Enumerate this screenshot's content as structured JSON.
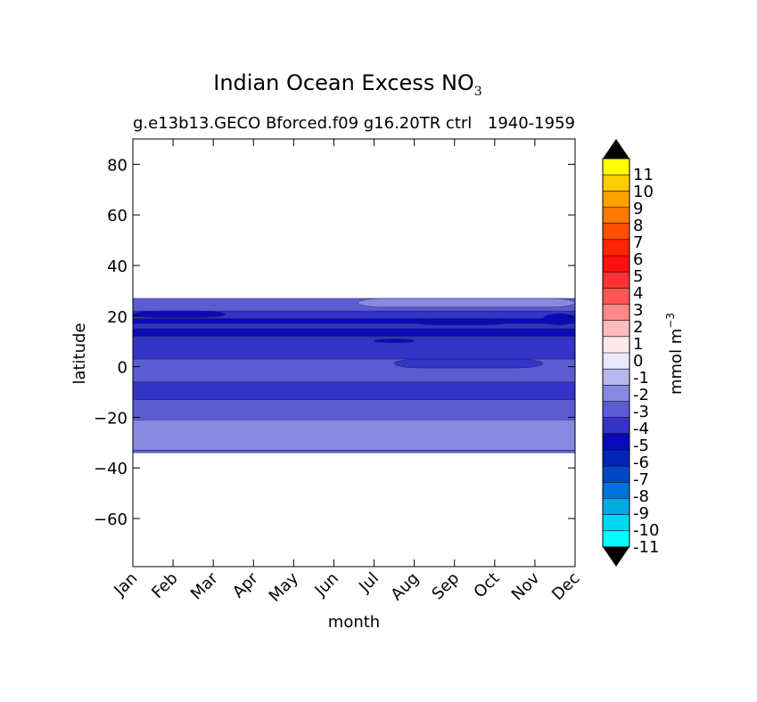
{
  "chart_data": {
    "type": "heatmap",
    "title": "Indian Ocean Excess NO",
    "title_subscript": "3",
    "subtitle_left": "g.e13b13.GECO Bforced.f09 g16.20TR ctrl",
    "subtitle_right": "1940-1959",
    "xlabel": "month",
    "ylabel": "latitude",
    "x_ticks": [
      "Jan",
      "Feb",
      "Mar",
      "Apr",
      "May",
      "Jun",
      "Jul",
      "Aug",
      "Sep",
      "Oct",
      "Nov",
      "Dec"
    ],
    "y_ticks": [
      80,
      60,
      40,
      20,
      0,
      -20,
      -40,
      -60
    ],
    "y_tick_labels": [
      "80",
      "60",
      "40",
      "20",
      "0",
      "−20",
      "−40",
      "−60"
    ],
    "ylim": [
      -79,
      90
    ],
    "grid": false,
    "colorbar": {
      "label": "mmol m",
      "label_superscript": "−3",
      "levels": [
        -11,
        -10,
        -9,
        -8,
        -7,
        -6,
        -5,
        -4,
        -3,
        -2,
        -1,
        0,
        1,
        2,
        3,
        4,
        5,
        6,
        7,
        8,
        9,
        10,
        11
      ],
      "tick_labels": [
        "11",
        "10",
        "9",
        "8",
        "7",
        "6",
        "5",
        "4",
        "3",
        "2",
        "1",
        "0",
        "-1",
        "-2",
        "-3",
        "-4",
        "-5",
        "-6",
        "-7",
        "-8",
        "-9",
        "-10",
        "-11"
      ],
      "colors": [
        "#00ffff",
        "#00d8f0",
        "#00aae0",
        "#0073d8",
        "#0048c8",
        "#0024b8",
        "#0a0ab8",
        "#3333c8",
        "#5c5cd2",
        "#8888e0",
        "#b8b8ee",
        "#e8e8fa",
        "#ffe8e8",
        "#ffbbbb",
        "#ff8888",
        "#ff5555",
        "#ff3333",
        "#ff1010",
        "#ff2600",
        "#ff5000",
        "#ff7800",
        "#ffa000",
        "#ffcc00",
        "#ffff00"
      ],
      "extend_colors": {
        "low": "#000000",
        "high": "#000000"
      }
    },
    "bands": [
      {
        "lat_top": 27,
        "lat_bottom": 22,
        "value": -3.5,
        "color": "#5c5cd2"
      },
      {
        "lat_top": 22,
        "lat_bottom": 19,
        "value": -4.5,
        "color": "#3333c8"
      },
      {
        "lat_top": 19,
        "lat_bottom": 17,
        "value": -5.5,
        "color": "#0a0ab8"
      },
      {
        "lat_top": 17,
        "lat_bottom": 15,
        "value": -4.5,
        "color": "#3333c8"
      },
      {
        "lat_top": 15,
        "lat_bottom": 12,
        "value": -5.5,
        "color": "#0a0ab8"
      },
      {
        "lat_top": 12,
        "lat_bottom": 3,
        "value": -4.5,
        "color": "#3333c8"
      },
      {
        "lat_top": 3,
        "lat_bottom": -6,
        "value": -3.5,
        "color": "#5c5cd2"
      },
      {
        "lat_top": -6,
        "lat_bottom": -13,
        "value": -4.5,
        "color": "#3333c8"
      },
      {
        "lat_top": -13,
        "lat_bottom": -21,
        "value": -3.5,
        "color": "#5c5cd2"
      },
      {
        "lat_top": -21,
        "lat_bottom": -33,
        "value": -2.5,
        "color": "#8888e0"
      },
      {
        "lat_top": -33,
        "lat_bottom": -34,
        "value": -3.5,
        "color": "#5c5cd2"
      }
    ],
    "patches": [
      {
        "month_start": 5.6,
        "month_end": 11,
        "lat_top": 27,
        "lat_bottom": 23.5,
        "value": -2.5,
        "color": "#8888e0"
      },
      {
        "month_start": 0,
        "month_end": 2.3,
        "lat_top": 22,
        "lat_bottom": 19.5,
        "value": -5.5,
        "color": "#0a0ab8"
      },
      {
        "month_start": 7,
        "month_end": 9.3,
        "lat_top": 18.5,
        "lat_bottom": 16.5,
        "value": -5.5,
        "color": "#0a0ab8"
      },
      {
        "month_start": 10.2,
        "month_end": 11,
        "lat_top": 21,
        "lat_bottom": 16.5,
        "value": -5.5,
        "color": "#0a0ab8"
      },
      {
        "month_start": 6,
        "month_end": 7,
        "lat_top": 11,
        "lat_bottom": 9.5,
        "value": -5.5,
        "color": "#0a0ab8"
      },
      {
        "month_start": 6.5,
        "month_end": 10.2,
        "lat_top": 3,
        "lat_bottom": -0.5,
        "value": -4.5,
        "color": "#3333c8"
      }
    ]
  }
}
